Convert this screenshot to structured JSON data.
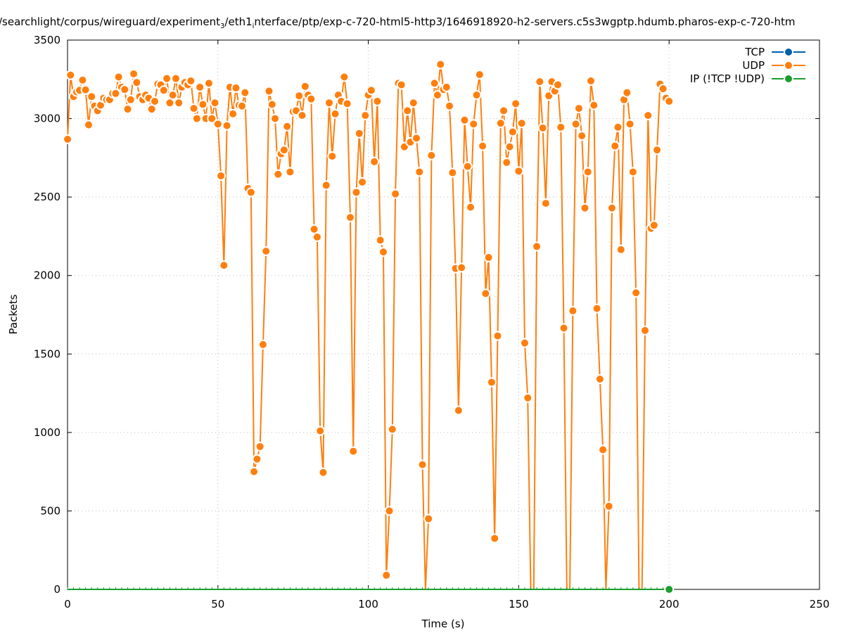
{
  "chart_data": {
    "type": "line",
    "title_parts": [
      "/searchlight/corpus/wireguard/experiment",
      "3",
      "/eth1",
      "i",
      "nterface/ptp/exp-c-720-html5-http3/1646918920-h2-servers.c5s3wgptp.hdumb.pharos-exp-c-720-htm"
    ],
    "xlabel": "Time (s)",
    "ylabel": "Packets",
    "xlim": [
      0,
      250
    ],
    "ylim": [
      0,
      3500
    ],
    "xticks": [
      0,
      50,
      100,
      150,
      200,
      250
    ],
    "yticks": [
      0,
      500,
      1000,
      1500,
      2000,
      2500,
      3000,
      3500
    ],
    "grid": true,
    "legend_position": "top-right",
    "series": [
      {
        "name": "TCP",
        "color": "#0060ad",
        "x": [],
        "values": []
      },
      {
        "name": "UDP",
        "color": "#ff7f0e",
        "x": [
          0,
          1,
          2,
          3,
          4,
          5,
          6,
          7,
          8,
          9,
          10,
          11,
          12,
          13,
          14,
          15,
          16,
          17,
          18,
          19,
          20,
          21,
          22,
          23,
          24,
          25,
          26,
          27,
          28,
          29,
          30,
          31,
          32,
          33,
          34,
          35,
          36,
          37,
          38,
          39,
          40,
          41,
          42,
          43,
          44,
          45,
          46,
          47,
          48,
          49,
          50,
          51,
          52,
          53,
          54,
          55,
          56,
          57,
          58,
          59,
          60,
          61,
          62,
          63,
          64,
          65,
          66,
          67,
          68,
          69,
          70,
          71,
          72,
          73,
          74,
          75,
          76,
          77,
          78,
          79,
          80,
          81,
          82,
          83,
          84,
          85,
          86,
          87,
          88,
          89,
          90,
          91,
          92,
          93,
          94,
          95,
          96,
          97,
          98,
          99,
          100,
          101,
          102,
          103,
          104,
          105,
          106,
          107,
          108,
          109,
          110,
          111,
          112,
          113,
          114,
          115,
          116,
          117,
          118,
          119,
          120,
          121,
          122,
          123,
          124,
          125,
          126,
          127,
          128,
          129,
          130,
          131,
          132,
          133,
          134,
          135,
          136,
          137,
          138,
          139,
          140,
          141,
          142,
          143,
          144,
          145,
          146,
          147,
          148,
          149,
          150,
          151,
          152,
          153,
          154,
          155,
          156,
          157,
          158,
          159,
          160,
          161,
          162,
          163,
          164,
          165,
          166,
          167,
          168,
          169,
          170,
          171,
          172,
          173,
          174,
          175,
          176,
          177,
          178,
          179,
          180,
          181,
          182,
          183,
          184,
          185,
          186,
          187,
          188,
          189,
          190,
          191,
          192,
          193,
          194,
          195,
          196,
          197,
          198,
          199,
          200
        ],
        "values": [
          2868,
          3277,
          3140,
          3170,
          3180,
          3245,
          3183,
          2960,
          3140,
          3080,
          3050,
          3085,
          3130,
          3120,
          3120,
          3160,
          3160,
          3265,
          3200,
          3185,
          3060,
          3120,
          3285,
          3230,
          3140,
          3120,
          3150,
          3130,
          3060,
          3110,
          3220,
          3215,
          3180,
          3255,
          3100,
          3150,
          3255,
          3100,
          3200,
          3230,
          3215,
          3240,
          3065,
          3000,
          3200,
          3090,
          3000,
          3225,
          3000,
          3100,
          2965,
          2635,
          2065,
          2955,
          3200,
          3030,
          3195,
          3085,
          3080,
          3165,
          2555,
          2530,
          750,
          830,
          910,
          1560,
          2155,
          3175,
          3090,
          3000,
          2645,
          2775,
          2800,
          2950,
          2660,
          3045,
          3050,
          3145,
          3020,
          3205,
          3150,
          3125,
          2295,
          2245,
          1010,
          745,
          2575,
          3100,
          2760,
          3030,
          3150,
          3110,
          3265,
          3095,
          2370,
          880,
          2530,
          2905,
          2595,
          3020,
          3150,
          3180,
          2725,
          3110,
          2225,
          2150,
          90,
          500,
          1020,
          2520,
          3225,
          3215,
          2820,
          3050,
          2850,
          3100,
          2875,
          2660,
          795,
          0,
          450,
          2765,
          3225,
          3150,
          3345,
          3185,
          3200,
          3080,
          2655,
          2045,
          1140,
          2050,
          2990,
          2695,
          2435,
          2965,
          3150,
          3280,
          2825,
          1885,
          2115,
          1320,
          325,
          1615,
          2970,
          3050,
          2720,
          2820,
          2915,
          3095,
          2665,
          2970,
          1570,
          1220,
          0,
          0,
          2185,
          3235,
          2940,
          2460,
          3145,
          3235,
          3175,
          3215,
          2945,
          1665,
          0,
          0,
          1775,
          2965,
          3065,
          2890,
          2430,
          2660,
          3240,
          3085,
          1790,
          1340,
          890,
          0,
          530,
          2430,
          2825,
          2945,
          2165,
          3120,
          3165,
          2965,
          2660,
          1890,
          0,
          0,
          1650,
          3020,
          2300,
          2320,
          2800,
          3220,
          3190,
          3130,
          3110
        ]
      },
      {
        "name": "IP (!TCP  !UDP)",
        "color": "#1a9e2e",
        "x_range": [
          0,
          200
        ],
        "constant": 0
      }
    ]
  }
}
